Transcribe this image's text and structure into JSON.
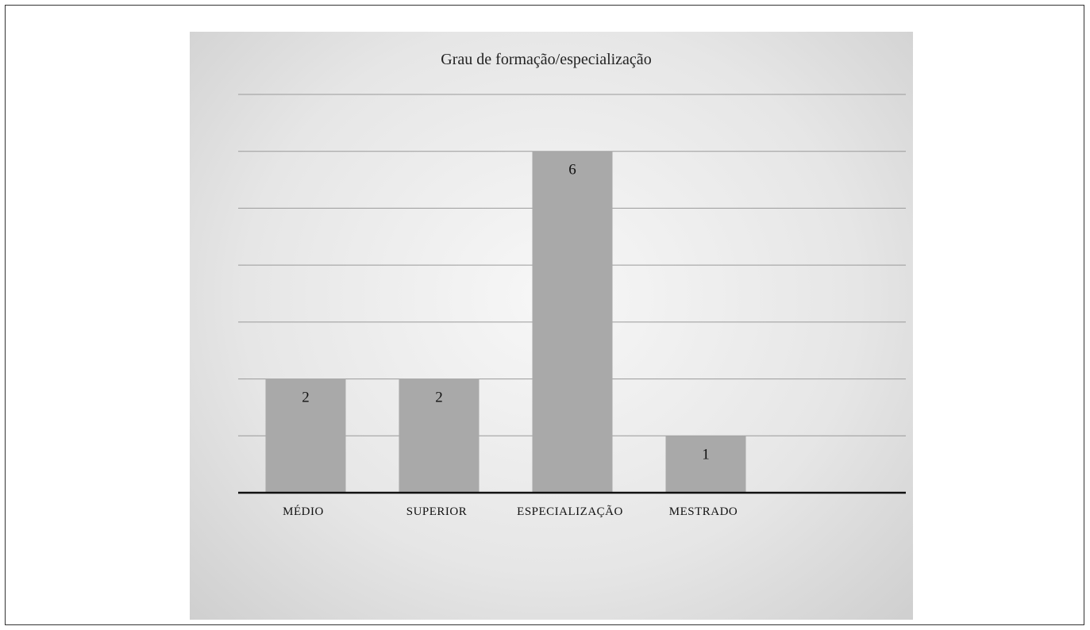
{
  "chart_data": {
    "type": "bar",
    "title": "Grau de formação/especialização",
    "categories": [
      "MÉDIO",
      "SUPERIOR",
      "ESPECIALIZAÇÃO",
      "MESTRADO"
    ],
    "values": [
      2,
      2,
      6,
      1
    ],
    "xlabel": "",
    "ylabel": "",
    "ylim": [
      0,
      7
    ],
    "grid": true,
    "legend": "none",
    "bar_color": "#a9a9a9",
    "gridline_color": "#9a9a9a",
    "axis_color": "#111111",
    "data_labels": true
  }
}
